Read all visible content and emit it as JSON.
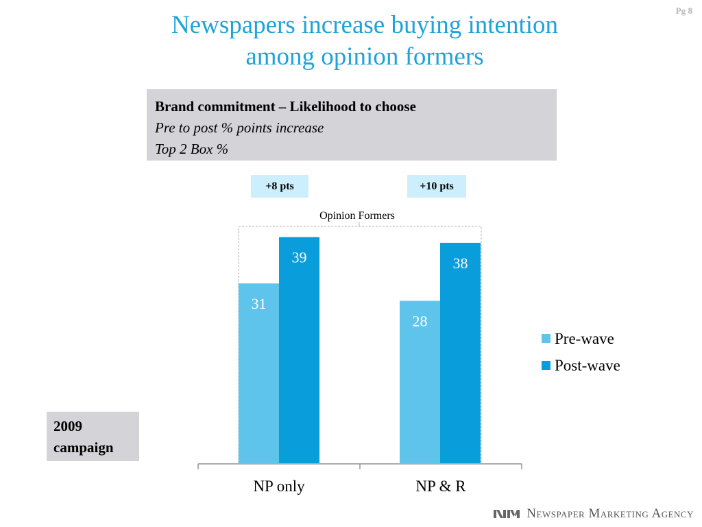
{
  "page": {
    "number": "Pg 8"
  },
  "title": {
    "line1": "Newspapers increase buying intention",
    "line2": "among opinion formers"
  },
  "info_box": {
    "heading": "Brand commitment – Likelihood to choose",
    "line2": "Pre to post % points increase",
    "line3": "Top 2 Box %"
  },
  "campaign_label": "2009 campaign",
  "footer": {
    "agency": "Newspaper Marketing Agency"
  },
  "colors": {
    "pre_wave": "#5ec4ec",
    "post_wave": "#0a9ddc",
    "title": "#1ea3d8"
  },
  "chart_data": {
    "type": "bar",
    "group_label": "Opinion Formers",
    "categories": [
      "NP only",
      "NP & R"
    ],
    "series": [
      {
        "name": "Pre-wave",
        "values": [
          31,
          28
        ],
        "color": "#5ec4ec"
      },
      {
        "name": "Post-wave",
        "values": [
          39,
          38
        ],
        "color": "#0a9ddc"
      }
    ],
    "increases": [
      "+8 pts",
      "+10 pts"
    ],
    "legend_position": "right",
    "grid": false
  }
}
